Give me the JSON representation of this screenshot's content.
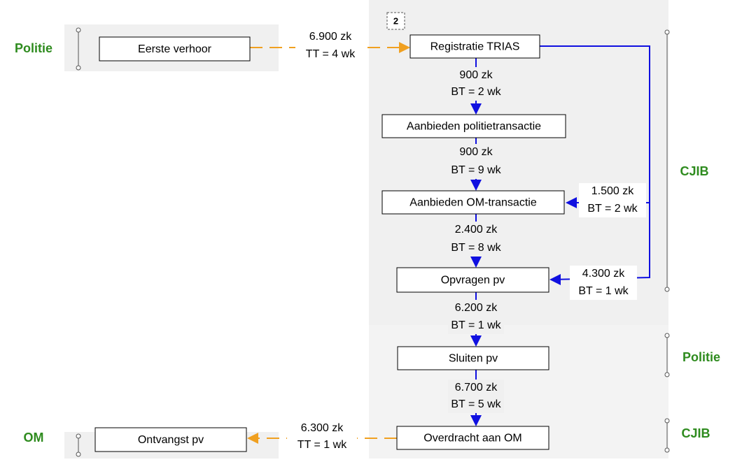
{
  "badge": "2",
  "lanes": {
    "left": [
      "Politie",
      "OM"
    ],
    "right": [
      "CJIB",
      "Politie",
      "CJIB"
    ]
  },
  "nodes": [
    "Eerste verhoor",
    "Registratie TRIAS",
    "Aanbieden politietransactie",
    "Aanbieden OM-transactie",
    "Opvragen pv",
    "Sluiten pv",
    "Overdracht aan OM",
    "Ontvangst pv"
  ],
  "edges": [
    [
      "6.900 zk",
      "TT = 4 wk"
    ],
    [
      "900 zk",
      "BT = 2 wk"
    ],
    [
      "900 zk",
      "BT = 9 wk"
    ],
    [
      "2.400 zk",
      "BT = 8 wk"
    ],
    [
      "6.200 zk",
      "BT = 1 wk"
    ],
    [
      "6.700 zk",
      "BT = 5 wk"
    ],
    [
      "6.300 zk",
      "TT = 1 wk"
    ],
    [
      "1.500 zk",
      "BT = 2 wk"
    ],
    [
      "4.300 zk",
      "BT = 1 wk"
    ]
  ]
}
